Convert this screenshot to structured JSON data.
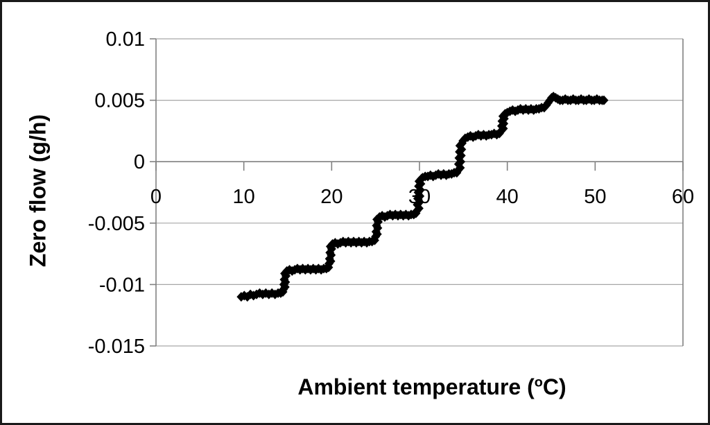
{
  "figure": {
    "background": "#ffffff",
    "border_color": "#1a1a1a"
  },
  "chart_data": {
    "type": "scatter",
    "title": "",
    "xlabel_pre": "Ambient temperature (",
    "xlabel_sup": "o",
    "xlabel_post": "C)",
    "ylabel": "Zero flow (g/h)",
    "xlim": [
      0,
      60
    ],
    "ylim": [
      -0.015,
      0.01
    ],
    "x_ticks": [
      0,
      10,
      20,
      30,
      40,
      50,
      60
    ],
    "x_tick_labels": [
      "0",
      "10",
      "20",
      "30",
      "40",
      "50",
      "60"
    ],
    "y_ticks": [
      0.01,
      0.005,
      0,
      -0.005,
      -0.01,
      -0.015
    ],
    "y_tick_labels": [
      "0.01",
      "0.005",
      "0",
      "-0.005",
      "-0.01",
      "-0.015"
    ],
    "grid": "horizontal",
    "legend": "none",
    "marker": "diamond",
    "marker_color": "#000000",
    "gridline_color": "#a6a6a6",
    "axis_color": "#808080",
    "levels_summary": [
      {
        "x_range": [
          9.7,
          14.4
        ],
        "y": -0.0108
      },
      {
        "x_range": [
          14.9,
          19.6
        ],
        "y": -0.0088
      },
      {
        "x_range": [
          20.1,
          25.0
        ],
        "y": -0.0066
      },
      {
        "x_range": [
          25.4,
          29.6
        ],
        "y": -0.0044
      },
      {
        "x_range": [
          30.3,
          34.3
        ],
        "y": -0.0011
      },
      {
        "x_range": [
          35.2,
          39.2
        ],
        "y": 0.0021
      },
      {
        "x_range": [
          40.0,
          44.2
        ],
        "y": 0.0042
      },
      {
        "x_range": [
          44.8,
          51.0
        ],
        "y": 0.005
      }
    ],
    "points": [
      [
        9.7,
        -0.011
      ],
      [
        10.05,
        -0.0109
      ],
      [
        10.4,
        -0.011
      ],
      [
        10.75,
        -0.0108
      ],
      [
        11.1,
        -0.0109
      ],
      [
        11.45,
        -0.0108
      ],
      [
        11.8,
        -0.0107
      ],
      [
        12.15,
        -0.0108
      ],
      [
        12.5,
        -0.0107
      ],
      [
        12.85,
        -0.0108
      ],
      [
        13.2,
        -0.0107
      ],
      [
        13.55,
        -0.0108
      ],
      [
        13.9,
        -0.0107
      ],
      [
        14.2,
        -0.0107
      ],
      [
        14.45,
        -0.0106
      ],
      [
        14.5,
        -0.0104
      ],
      [
        14.7,
        -0.0102
      ],
      [
        14.55,
        -0.01
      ],
      [
        14.75,
        -0.0098
      ],
      [
        14.6,
        -0.0096
      ],
      [
        14.8,
        -0.0093
      ],
      [
        14.65,
        -0.0091
      ],
      [
        14.9,
        -0.0089
      ],
      [
        15.2,
        -0.0088
      ],
      [
        15.5,
        -0.0089
      ],
      [
        15.8,
        -0.0088
      ],
      [
        16.1,
        -0.0087
      ],
      [
        16.4,
        -0.0088
      ],
      [
        16.7,
        -0.0087
      ],
      [
        17.0,
        -0.0088
      ],
      [
        17.3,
        -0.0087
      ],
      [
        17.6,
        -0.0088
      ],
      [
        17.9,
        -0.0087
      ],
      [
        18.2,
        -0.0088
      ],
      [
        18.5,
        -0.0087
      ],
      [
        18.8,
        -0.0088
      ],
      [
        19.1,
        -0.0087
      ],
      [
        19.4,
        -0.0087
      ],
      [
        19.65,
        -0.0086
      ],
      [
        19.7,
        -0.0083
      ],
      [
        19.9,
        -0.0081
      ],
      [
        19.75,
        -0.0079
      ],
      [
        19.95,
        -0.0076
      ],
      [
        19.8,
        -0.0074
      ],
      [
        20.0,
        -0.0071
      ],
      [
        19.85,
        -0.0069
      ],
      [
        20.1,
        -0.0067
      ],
      [
        20.4,
        -0.0066
      ],
      [
        20.7,
        -0.0067
      ],
      [
        21.0,
        -0.0066
      ],
      [
        21.3,
        -0.0065
      ],
      [
        21.6,
        -0.0066
      ],
      [
        21.9,
        -0.0065
      ],
      [
        22.2,
        -0.0066
      ],
      [
        22.5,
        -0.0065
      ],
      [
        22.8,
        -0.0066
      ],
      [
        23.1,
        -0.0065
      ],
      [
        23.4,
        -0.0066
      ],
      [
        23.7,
        -0.0065
      ],
      [
        24.0,
        -0.0066
      ],
      [
        24.3,
        -0.0065
      ],
      [
        24.6,
        -0.0065
      ],
      [
        24.9,
        -0.0064
      ],
      [
        25.0,
        -0.0061
      ],
      [
        25.2,
        -0.0059
      ],
      [
        25.05,
        -0.0057
      ],
      [
        25.25,
        -0.0054
      ],
      [
        25.1,
        -0.0052
      ],
      [
        25.3,
        -0.0049
      ],
      [
        25.15,
        -0.0047
      ],
      [
        25.45,
        -0.0045
      ],
      [
        25.75,
        -0.0044
      ],
      [
        26.05,
        -0.0045
      ],
      [
        26.35,
        -0.0044
      ],
      [
        26.65,
        -0.0043
      ],
      [
        26.95,
        -0.0044
      ],
      [
        27.25,
        -0.0043
      ],
      [
        27.55,
        -0.0044
      ],
      [
        27.85,
        -0.0043
      ],
      [
        28.15,
        -0.0044
      ],
      [
        28.45,
        -0.0043
      ],
      [
        28.75,
        -0.0044
      ],
      [
        29.05,
        -0.0043
      ],
      [
        29.35,
        -0.0043
      ],
      [
        29.6,
        -0.0042
      ],
      [
        29.7,
        -0.004
      ],
      [
        29.95,
        -0.0038
      ],
      [
        29.75,
        -0.0035
      ],
      [
        30.0,
        -0.0033
      ],
      [
        29.8,
        -0.003
      ],
      [
        30.05,
        -0.0028
      ],
      [
        29.85,
        -0.0025
      ],
      [
        30.1,
        -0.0023
      ],
      [
        29.9,
        -0.002
      ],
      [
        30.15,
        -0.0018
      ],
      [
        29.95,
        -0.0016
      ],
      [
        30.2,
        -0.0014
      ],
      [
        30.35,
        -0.0013
      ],
      [
        30.65,
        -0.0012
      ],
      [
        30.95,
        -0.0012
      ],
      [
        31.25,
        -0.0011
      ],
      [
        31.55,
        -0.0012
      ],
      [
        31.85,
        -0.0011
      ],
      [
        32.15,
        -0.001
      ],
      [
        32.45,
        -0.0011
      ],
      [
        32.75,
        -0.001
      ],
      [
        33.05,
        -0.0011
      ],
      [
        33.35,
        -0.001
      ],
      [
        33.65,
        -0.001
      ],
      [
        33.95,
        -0.0009
      ],
      [
        34.25,
        -0.0009
      ],
      [
        34.4,
        -0.0007
      ],
      [
        34.65,
        -0.0005
      ],
      [
        34.45,
        -0.0002
      ],
      [
        34.7,
        0.0
      ],
      [
        34.5,
        0.0003
      ],
      [
        34.75,
        0.0005
      ],
      [
        34.55,
        0.0008
      ],
      [
        34.8,
        0.001
      ],
      [
        34.6,
        0.0013
      ],
      [
        34.85,
        0.0015
      ],
      [
        34.95,
        0.0017
      ],
      [
        35.2,
        0.0019
      ],
      [
        35.5,
        0.002
      ],
      [
        35.8,
        0.0021
      ],
      [
        36.1,
        0.002
      ],
      [
        36.4,
        0.0021
      ],
      [
        36.7,
        0.0022
      ],
      [
        37.0,
        0.0021
      ],
      [
        37.3,
        0.0022
      ],
      [
        37.6,
        0.0021
      ],
      [
        37.9,
        0.0022
      ],
      [
        38.2,
        0.0022
      ],
      [
        38.5,
        0.0023
      ],
      [
        38.8,
        0.0022
      ],
      [
        39.1,
        0.0023
      ],
      [
        39.3,
        0.0025
      ],
      [
        39.55,
        0.0027
      ],
      [
        39.35,
        0.0029
      ],
      [
        39.6,
        0.0031
      ],
      [
        39.4,
        0.0033
      ],
      [
        39.65,
        0.0035
      ],
      [
        39.5,
        0.0037
      ],
      [
        39.75,
        0.0039
      ],
      [
        40.0,
        0.004
      ],
      [
        40.3,
        0.0041
      ],
      [
        40.6,
        0.0042
      ],
      [
        40.9,
        0.0041
      ],
      [
        41.2,
        0.0042
      ],
      [
        41.5,
        0.0043
      ],
      [
        41.8,
        0.0042
      ],
      [
        42.1,
        0.0043
      ],
      [
        42.4,
        0.0042
      ],
      [
        42.7,
        0.0043
      ],
      [
        43.0,
        0.0042
      ],
      [
        43.3,
        0.0043
      ],
      [
        43.6,
        0.0043
      ],
      [
        43.9,
        0.0044
      ],
      [
        44.2,
        0.0044
      ],
      [
        44.45,
        0.0046
      ],
      [
        44.65,
        0.0048
      ],
      [
        44.85,
        0.005
      ],
      [
        45.05,
        0.0052
      ],
      [
        45.25,
        0.0053
      ],
      [
        45.5,
        0.0052
      ],
      [
        45.75,
        0.0051
      ],
      [
        46.0,
        0.005
      ],
      [
        46.3,
        0.005
      ],
      [
        46.6,
        0.0051
      ],
      [
        46.9,
        0.005
      ],
      [
        47.2,
        0.005
      ],
      [
        47.5,
        0.0051
      ],
      [
        47.8,
        0.005
      ],
      [
        48.1,
        0.005
      ],
      [
        48.4,
        0.0051
      ],
      [
        48.7,
        0.005
      ],
      [
        49.0,
        0.005
      ],
      [
        49.3,
        0.0051
      ],
      [
        49.6,
        0.005
      ],
      [
        49.9,
        0.005
      ],
      [
        50.2,
        0.0051
      ],
      [
        50.5,
        0.005
      ],
      [
        50.8,
        0.005
      ],
      [
        51.0,
        0.005
      ]
    ]
  }
}
